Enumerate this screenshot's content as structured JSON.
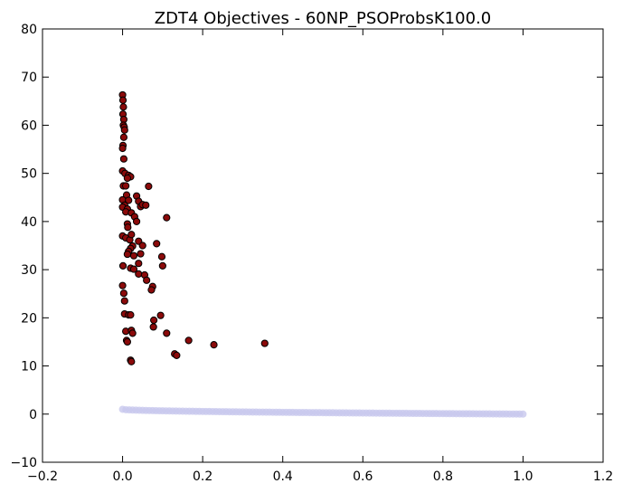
{
  "chart_data": {
    "type": "scatter",
    "title": "ZDT4 Objectives - 60NP_PSOProbsK100.0",
    "xlabel": "",
    "ylabel": "",
    "xlim": [
      -0.2,
      1.2
    ],
    "ylim": [
      -10,
      80
    ],
    "xticks": [
      "−0.2",
      "0.0",
      "0.2",
      "0.4",
      "0.6",
      "0.8",
      "1.0",
      "1.2"
    ],
    "xtick_values": [
      -0.2,
      0.0,
      0.2,
      0.4,
      0.6,
      0.8,
      1.0,
      1.2
    ],
    "yticks": [
      "−10",
      "0",
      "10",
      "20",
      "30",
      "40",
      "50",
      "60",
      "70",
      "80"
    ],
    "ytick_values": [
      -10,
      0,
      10,
      20,
      30,
      40,
      50,
      60,
      70,
      80
    ],
    "grid": false,
    "legend": "none",
    "series": [
      {
        "color": "#8b0a0a",
        "edge_color": "#000000",
        "points": [
          [
            0.0,
            66.3
          ],
          [
            0.001,
            65.2
          ],
          [
            0.002,
            63.8
          ],
          [
            0.001,
            62.3
          ],
          [
            0.003,
            61.2
          ],
          [
            0.002,
            60.0
          ],
          [
            0.004,
            59.6
          ],
          [
            0.005,
            59.0
          ],
          [
            0.003,
            57.5
          ],
          [
            0.001,
            55.8
          ],
          [
            0.0,
            55.2
          ],
          [
            0.003,
            53.0
          ],
          [
            0.0,
            50.5
          ],
          [
            0.006,
            50.0
          ],
          [
            0.015,
            49.6
          ],
          [
            0.02,
            49.3
          ],
          [
            0.012,
            49.0
          ],
          [
            0.002,
            47.4
          ],
          [
            0.008,
            47.4
          ],
          [
            0.065,
            47.3
          ],
          [
            0.01,
            45.5
          ],
          [
            0.035,
            45.3
          ],
          [
            0.0,
            44.5
          ],
          [
            0.015,
            44.4
          ],
          [
            0.04,
            44.2
          ],
          [
            0.005,
            43.4
          ],
          [
            0.045,
            43.1
          ],
          [
            0.05,
            43.5
          ],
          [
            0.058,
            43.4
          ],
          [
            0.0,
            43.0
          ],
          [
            0.012,
            42.6
          ],
          [
            0.008,
            42.0
          ],
          [
            0.022,
            41.8
          ],
          [
            0.03,
            41.0
          ],
          [
            0.035,
            40.0
          ],
          [
            0.11,
            40.8
          ],
          [
            0.012,
            39.5
          ],
          [
            0.013,
            38.8
          ],
          [
            0.0,
            37.0
          ],
          [
            0.008,
            36.6
          ],
          [
            0.018,
            36.2
          ],
          [
            0.022,
            37.3
          ],
          [
            0.04,
            35.9
          ],
          [
            0.05,
            35.0
          ],
          [
            0.085,
            35.4
          ],
          [
            0.025,
            34.9
          ],
          [
            0.02,
            34.4
          ],
          [
            0.015,
            33.8
          ],
          [
            0.012,
            33.2
          ],
          [
            0.045,
            33.3
          ],
          [
            0.098,
            32.7
          ],
          [
            0.028,
            32.9
          ],
          [
            0.04,
            31.3
          ],
          [
            0.001,
            30.8
          ],
          [
            0.02,
            30.3
          ],
          [
            0.028,
            30.1
          ],
          [
            0.1,
            30.8
          ],
          [
            0.04,
            29.1
          ],
          [
            0.055,
            28.9
          ],
          [
            0.06,
            27.8
          ],
          [
            0.075,
            26.5
          ],
          [
            0.072,
            25.8
          ],
          [
            0.0,
            26.7
          ],
          [
            0.003,
            25.1
          ],
          [
            0.005,
            23.5
          ],
          [
            0.005,
            20.8
          ],
          [
            0.015,
            20.6
          ],
          [
            0.02,
            20.6
          ],
          [
            0.095,
            20.5
          ],
          [
            0.078,
            19.5
          ],
          [
            0.077,
            18.1
          ],
          [
            0.008,
            17.2
          ],
          [
            0.022,
            17.4
          ],
          [
            0.025,
            16.8
          ],
          [
            0.11,
            16.8
          ],
          [
            0.01,
            15.3
          ],
          [
            0.012,
            15.0
          ],
          [
            0.165,
            15.3
          ],
          [
            0.228,
            14.4
          ],
          [
            0.355,
            14.7
          ],
          [
            0.13,
            12.5
          ],
          [
            0.135,
            12.2
          ],
          [
            0.02,
            11.2
          ],
          [
            0.022,
            10.9
          ]
        ]
      },
      {
        "color": "#c8c8ee",
        "edge_color": "#c8c8ee",
        "x_range": [
          0.0,
          1.0
        ],
        "formula_points": [
          [
            0.0,
            1.0
          ],
          [
            0.05,
            0.78
          ],
          [
            0.1,
            0.68
          ],
          [
            0.15,
            0.61
          ],
          [
            0.2,
            0.55
          ],
          [
            0.3,
            0.45
          ],
          [
            0.4,
            0.37
          ],
          [
            0.5,
            0.29
          ],
          [
            0.6,
            0.23
          ],
          [
            0.7,
            0.16
          ],
          [
            0.8,
            0.11
          ],
          [
            0.9,
            0.05
          ],
          [
            1.0,
            0.0
          ]
        ]
      }
    ]
  }
}
